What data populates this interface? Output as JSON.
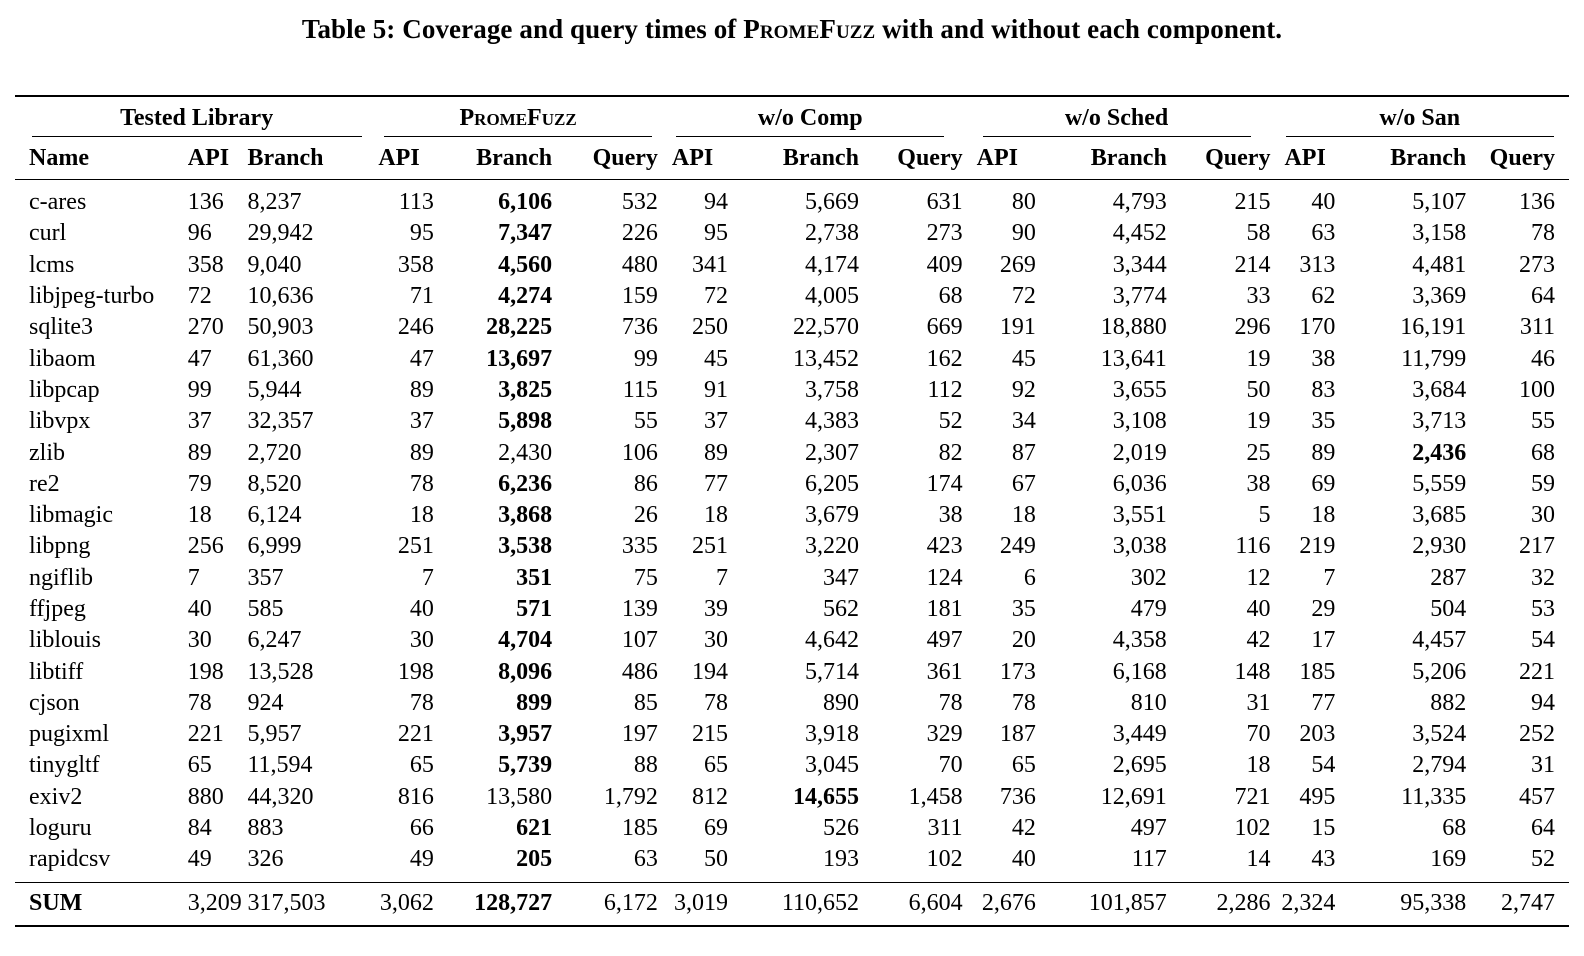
{
  "caption": {
    "prefix": "Table 5: Coverage and query times of ",
    "name": "PromeFuzz",
    "suffix": " with and without each component."
  },
  "groups": [
    "Tested Library",
    "PromeFuzz",
    "w/o Comp",
    "w/o Sched",
    "w/o San"
  ],
  "subheaders": [
    "Name",
    "API",
    "Branch",
    "API",
    "Branch",
    "Query",
    "API",
    "Branch",
    "Query",
    "API",
    "Branch",
    "Query",
    "API",
    "Branch",
    "Query"
  ],
  "rows": [
    {
      "name": "c-ares",
      "cells": [
        "136",
        "8,237",
        "113",
        "6,106",
        "532",
        "94",
        "5,669",
        "631",
        "80",
        "4,793",
        "215",
        "40",
        "5,107",
        "136"
      ],
      "bold": [
        3
      ]
    },
    {
      "name": "curl",
      "cells": [
        "96",
        "29,942",
        "95",
        "7,347",
        "226",
        "95",
        "2,738",
        "273",
        "90",
        "4,452",
        "58",
        "63",
        "3,158",
        "78"
      ],
      "bold": [
        3
      ]
    },
    {
      "name": "lcms",
      "cells": [
        "358",
        "9,040",
        "358",
        "4,560",
        "480",
        "341",
        "4,174",
        "409",
        "269",
        "3,344",
        "214",
        "313",
        "4,481",
        "273"
      ],
      "bold": [
        3
      ]
    },
    {
      "name": "libjpeg-turbo",
      "cells": [
        "72",
        "10,636",
        "71",
        "4,274",
        "159",
        "72",
        "4,005",
        "68",
        "72",
        "3,774",
        "33",
        "62",
        "3,369",
        "64"
      ],
      "bold": [
        3
      ]
    },
    {
      "name": "sqlite3",
      "cells": [
        "270",
        "50,903",
        "246",
        "28,225",
        "736",
        "250",
        "22,570",
        "669",
        "191",
        "18,880",
        "296",
        "170",
        "16,191",
        "311"
      ],
      "bold": [
        3
      ]
    },
    {
      "name": "libaom",
      "cells": [
        "47",
        "61,360",
        "47",
        "13,697",
        "99",
        "45",
        "13,452",
        "162",
        "45",
        "13,641",
        "19",
        "38",
        "11,799",
        "46"
      ],
      "bold": [
        3
      ]
    },
    {
      "name": "libpcap",
      "cells": [
        "99",
        "5,944",
        "89",
        "3,825",
        "115",
        "91",
        "3,758",
        "112",
        "92",
        "3,655",
        "50",
        "83",
        "3,684",
        "100"
      ],
      "bold": [
        3
      ]
    },
    {
      "name": "libvpx",
      "cells": [
        "37",
        "32,357",
        "37",
        "5,898",
        "55",
        "37",
        "4,383",
        "52",
        "34",
        "3,108",
        "19",
        "35",
        "3,713",
        "55"
      ],
      "bold": [
        3
      ]
    },
    {
      "name": "zlib",
      "cells": [
        "89",
        "2,720",
        "89",
        "2,430",
        "106",
        "89",
        "2,307",
        "82",
        "87",
        "2,019",
        "25",
        "89",
        "2,436",
        "68"
      ],
      "bold": [
        12
      ]
    },
    {
      "name": "re2",
      "cells": [
        "79",
        "8,520",
        "78",
        "6,236",
        "86",
        "77",
        "6,205",
        "174",
        "67",
        "6,036",
        "38",
        "69",
        "5,559",
        "59"
      ],
      "bold": [
        3
      ]
    },
    {
      "name": "libmagic",
      "cells": [
        "18",
        "6,124",
        "18",
        "3,868",
        "26",
        "18",
        "3,679",
        "38",
        "18",
        "3,551",
        "5",
        "18",
        "3,685",
        "30"
      ],
      "bold": [
        3
      ]
    },
    {
      "name": "libpng",
      "cells": [
        "256",
        "6,999",
        "251",
        "3,538",
        "335",
        "251",
        "3,220",
        "423",
        "249",
        "3,038",
        "116",
        "219",
        "2,930",
        "217"
      ],
      "bold": [
        3
      ]
    },
    {
      "name": "ngiflib",
      "cells": [
        "7",
        "357",
        "7",
        "351",
        "75",
        "7",
        "347",
        "124",
        "6",
        "302",
        "12",
        "7",
        "287",
        "32"
      ],
      "bold": [
        3
      ]
    },
    {
      "name": "ffjpeg",
      "cells": [
        "40",
        "585",
        "40",
        "571",
        "139",
        "39",
        "562",
        "181",
        "35",
        "479",
        "40",
        "29",
        "504",
        "53"
      ],
      "bold": [
        3
      ]
    },
    {
      "name": "liblouis",
      "cells": [
        "30",
        "6,247",
        "30",
        "4,704",
        "107",
        "30",
        "4,642",
        "497",
        "20",
        "4,358",
        "42",
        "17",
        "4,457",
        "54"
      ],
      "bold": [
        3
      ]
    },
    {
      "name": "libtiff",
      "cells": [
        "198",
        "13,528",
        "198",
        "8,096",
        "486",
        "194",
        "5,714",
        "361",
        "173",
        "6,168",
        "148",
        "185",
        "5,206",
        "221"
      ],
      "bold": [
        3
      ]
    },
    {
      "name": "cjson",
      "cells": [
        "78",
        "924",
        "78",
        "899",
        "85",
        "78",
        "890",
        "78",
        "78",
        "810",
        "31",
        "77",
        "882",
        "94"
      ],
      "bold": [
        3
      ]
    },
    {
      "name": "pugixml",
      "cells": [
        "221",
        "5,957",
        "221",
        "3,957",
        "197",
        "215",
        "3,918",
        "329",
        "187",
        "3,449",
        "70",
        "203",
        "3,524",
        "252"
      ],
      "bold": [
        3
      ]
    },
    {
      "name": "tinygltf",
      "cells": [
        "65",
        "11,594",
        "65",
        "5,739",
        "88",
        "65",
        "3,045",
        "70",
        "65",
        "2,695",
        "18",
        "54",
        "2,794",
        "31"
      ],
      "bold": [
        3
      ]
    },
    {
      "name": "exiv2",
      "cells": [
        "880",
        "44,320",
        "816",
        "13,580",
        "1,792",
        "812",
        "14,655",
        "1,458",
        "736",
        "12,691",
        "721",
        "495",
        "11,335",
        "457"
      ],
      "bold": [
        6
      ]
    },
    {
      "name": "loguru",
      "cells": [
        "84",
        "883",
        "66",
        "621",
        "185",
        "69",
        "526",
        "311",
        "42",
        "497",
        "102",
        "15",
        "68",
        "64"
      ],
      "bold": [
        3
      ]
    },
    {
      "name": "rapidcsv",
      "cells": [
        "49",
        "326",
        "49",
        "205",
        "63",
        "50",
        "193",
        "102",
        "40",
        "117",
        "14",
        "43",
        "169",
        "52"
      ],
      "bold": [
        3
      ]
    }
  ],
  "sum": {
    "name": "SUM",
    "cells": [
      "3,209",
      "317,503",
      "3,062",
      "128,727",
      "6,172",
      "3,019",
      "110,652",
      "6,604",
      "2,676",
      "101,857",
      "2,286",
      "2,324",
      "95,338",
      "2,747"
    ],
    "bold": [
      3
    ]
  }
}
